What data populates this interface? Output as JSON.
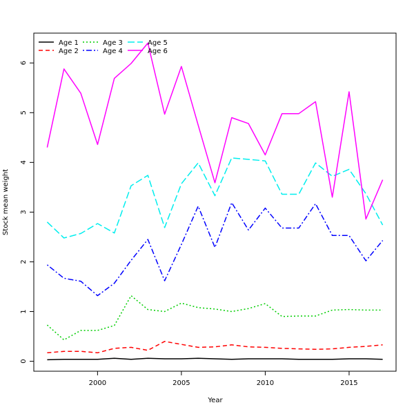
{
  "chart_data": {
    "type": "line",
    "xlabel": "Year",
    "ylabel": "Stock mean weight",
    "xlim": [
      1996.2,
      2017.8
    ],
    "ylim": [
      -0.2,
      6.6
    ],
    "x_ticks": [
      2000,
      2005,
      2010,
      2015
    ],
    "y_ticks": [
      0,
      1,
      2,
      3,
      4,
      5,
      6
    ],
    "grid": false,
    "legend_position": "top-left",
    "x": [
      1997,
      1998,
      1999,
      2000,
      2001,
      2002,
      2003,
      2004,
      2005,
      2006,
      2007,
      2008,
      2009,
      2010,
      2011,
      2012,
      2013,
      2014,
      2015,
      2016,
      2017
    ],
    "series": [
      {
        "name": "Age 1",
        "color": "#000000",
        "dash": "solid",
        "values": [
          0.03,
          0.04,
          0.04,
          0.04,
          0.06,
          0.04,
          0.06,
          0.05,
          0.05,
          0.06,
          0.05,
          0.04,
          0.05,
          0.05,
          0.05,
          0.04,
          0.04,
          0.04,
          0.05,
          0.05,
          0.04
        ]
      },
      {
        "name": "Age 2",
        "color": "#ff0000",
        "dash": "dashed",
        "values": [
          0.17,
          0.2,
          0.2,
          0.17,
          0.26,
          0.28,
          0.22,
          0.4,
          0.34,
          0.28,
          0.29,
          0.33,
          0.29,
          0.28,
          0.26,
          0.25,
          0.24,
          0.25,
          0.28,
          0.3,
          0.33
        ]
      },
      {
        "name": "Age 3",
        "color": "#00cd00",
        "dash": "dotted",
        "values": [
          0.73,
          0.43,
          0.62,
          0.62,
          0.72,
          1.32,
          1.04,
          1.0,
          1.17,
          1.08,
          1.05,
          1.0,
          1.06,
          1.16,
          0.9,
          0.91,
          0.91,
          1.03,
          1.04,
          1.03,
          1.03
        ]
      },
      {
        "name": "Age 4",
        "color": "#0000ff",
        "dash": "dotdash",
        "values": [
          1.94,
          1.67,
          1.61,
          1.32,
          1.57,
          2.03,
          2.45,
          1.62,
          2.35,
          3.12,
          2.29,
          3.19,
          2.64,
          3.08,
          2.68,
          2.68,
          3.17,
          2.53,
          2.53,
          2.02,
          2.43
        ]
      },
      {
        "name": "Age 5",
        "color": "#00eeee",
        "dash": "longdash",
        "values": [
          2.8,
          2.48,
          2.57,
          2.77,
          2.58,
          3.53,
          3.74,
          2.69,
          3.57,
          3.99,
          3.33,
          4.09,
          4.06,
          4.03,
          3.36,
          3.36,
          3.99,
          3.72,
          3.86,
          3.37,
          2.74
        ]
      },
      {
        "name": "Age 6",
        "color": "#ff00ff",
        "dash": "solid",
        "values": [
          4.3,
          5.88,
          5.39,
          4.36,
          5.69,
          5.99,
          6.4,
          4.97,
          5.93,
          4.75,
          3.59,
          4.9,
          4.78,
          4.15,
          4.98,
          4.98,
          5.22,
          3.3,
          5.42,
          2.86,
          3.65
        ]
      }
    ]
  }
}
